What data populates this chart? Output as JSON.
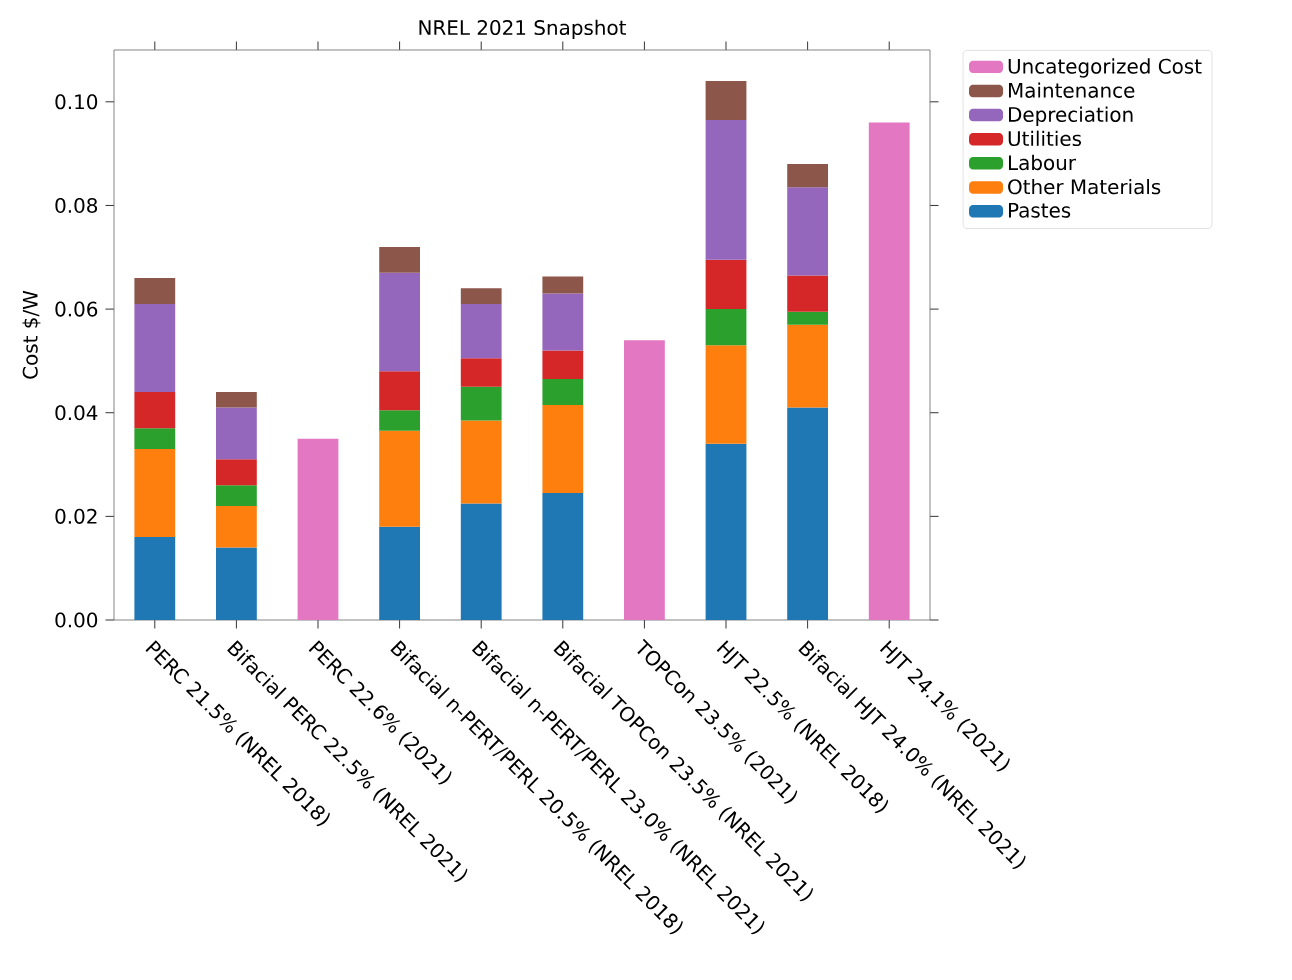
{
  "chart_data": {
    "type": "bar",
    "stacked": true,
    "title": "NREL 2021 Snapshot",
    "ylabel": "Cost $/W",
    "categories": [
      "PERC 21.5% (NREL 2018)",
      "Bifacial PERC 22.5% (NREL 2021)",
      "PERC 22.6% (2021)",
      "Bifacial n-PERT/PERL 20.5% (NREL 2018)",
      "Bifacial n-PERT/PERL 23.0% (NREL 2021)",
      "Bifacial TOPCon 23.5% (NREL 2021)",
      "TOPCon 23.5% (2021)",
      "HJT 22.5% (NREL 2018)",
      "Bifacial HJT 24.0% (NREL 2021)",
      "HJT 24.1% (2021)"
    ],
    "series": [
      {
        "name": "Pastes",
        "color": "#1f77b4",
        "values": [
          0.016,
          0.014,
          null,
          0.018,
          0.0225,
          0.0245,
          null,
          0.034,
          0.041,
          null
        ]
      },
      {
        "name": "Other Materials",
        "color": "#ff7f0e",
        "values": [
          0.017,
          0.008,
          null,
          0.0185,
          0.016,
          0.017,
          null,
          0.019,
          0.016,
          null
        ]
      },
      {
        "name": "Labour",
        "color": "#2ca02c",
        "values": [
          0.004,
          0.004,
          null,
          0.004,
          0.0065,
          0.005,
          null,
          0.007,
          0.0025,
          null
        ]
      },
      {
        "name": "Utilities",
        "color": "#d62728",
        "values": [
          0.007,
          0.005,
          null,
          0.0075,
          0.0055,
          0.0055,
          null,
          0.0095,
          0.007,
          null
        ]
      },
      {
        "name": "Depreciation",
        "color": "#9467bd",
        "values": [
          0.017,
          0.01,
          null,
          0.019,
          0.0105,
          0.011,
          null,
          0.027,
          0.017,
          null
        ]
      },
      {
        "name": "Maintenance",
        "color": "#8c564b",
        "values": [
          0.005,
          0.003,
          null,
          0.005,
          0.003,
          0.0033,
          null,
          0.0075,
          0.0045,
          null
        ]
      },
      {
        "name": "Uncategorized Cost",
        "color": "#e377c2",
        "values": [
          null,
          null,
          0.035,
          null,
          null,
          null,
          0.054,
          null,
          null,
          0.096
        ]
      }
    ],
    "ylim": [
      0,
      0.11
    ],
    "yticks": [
      {
        "value": 0,
        "label": "0.00"
      },
      {
        "value": 0.02,
        "label": "0.02"
      },
      {
        "value": 0.04,
        "label": "0.04"
      },
      {
        "value": 0.06,
        "label": "0.06"
      },
      {
        "value": 0.08,
        "label": "0.08"
      },
      {
        "value": 0.1,
        "label": "0.10"
      }
    ],
    "legend": "top right"
  }
}
